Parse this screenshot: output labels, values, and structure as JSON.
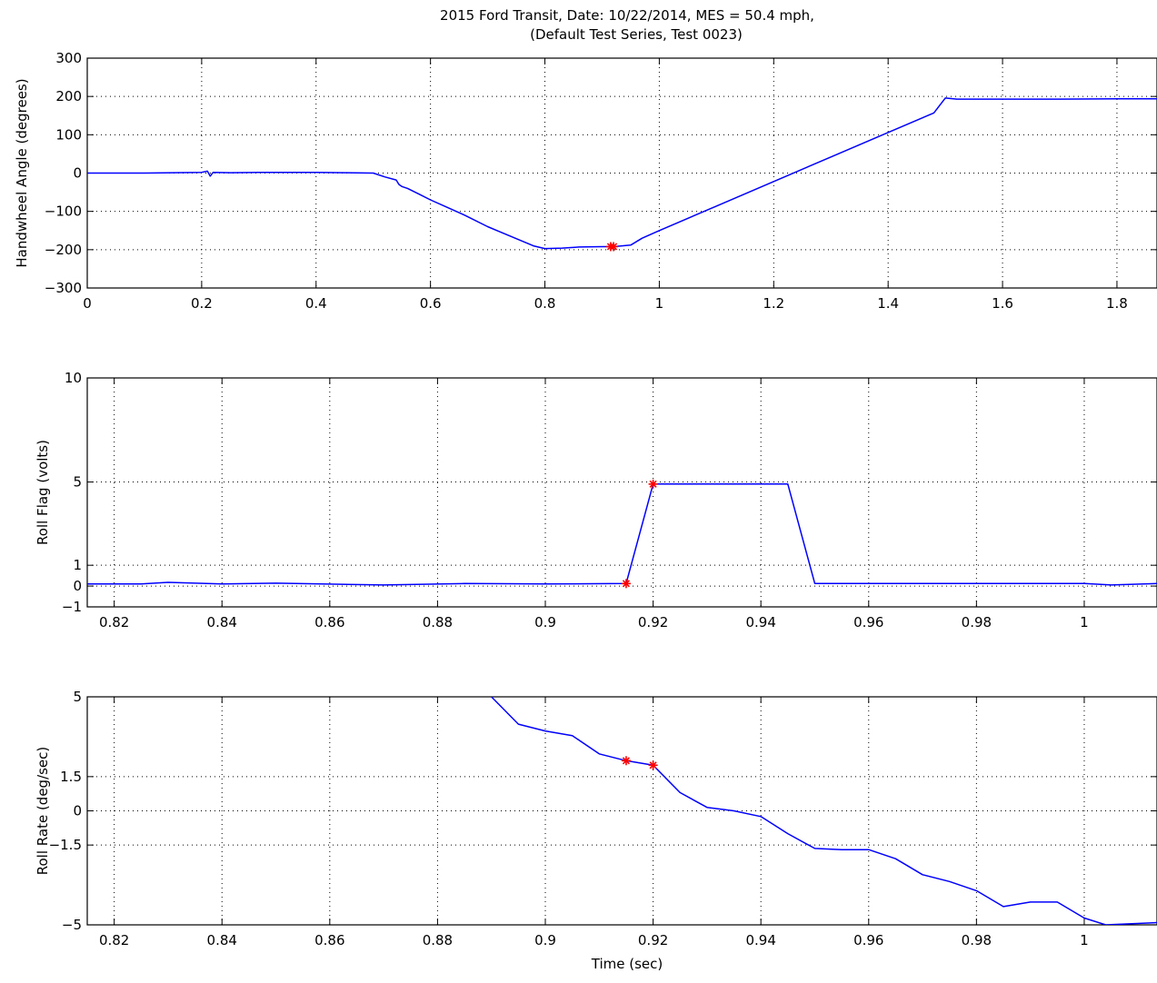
{
  "figure_title": {
    "line1": "2015 Ford Transit, Date: 10/22/2014, MES = 50.4 mph,",
    "line2": "(Default Test Series, Test 0023)"
  },
  "colors": {
    "series": "#0000ff",
    "marker": "#ff0000",
    "grid": "#000000"
  },
  "chart_data": [
    {
      "type": "line",
      "title": "",
      "xlabel": "",
      "ylabel": "Handwheel Angle (degrees)",
      "xlim": [
        0,
        1.87
      ],
      "ylim": [
        -300,
        300
      ],
      "grid": true,
      "xticks": [
        0,
        0.2,
        0.4,
        0.6,
        0.8,
        1,
        1.2,
        1.4,
        1.6,
        1.8
      ],
      "xtick_labels": [
        "0",
        "0.2",
        "0.4",
        "0.6",
        "0.8",
        "1",
        "1.2",
        "1.4",
        "1.6",
        "1.8"
      ],
      "yticks": [
        -300,
        -200,
        -100,
        0,
        100,
        200,
        300
      ],
      "ytick_labels": [
        "−300",
        "−200",
        "−100",
        "0",
        "100",
        "200",
        "300"
      ],
      "series": [
        {
          "x": [
            0,
            0.05,
            0.1,
            0.15,
            0.2,
            0.21,
            0.215,
            0.22,
            0.25,
            0.3,
            0.35,
            0.4,
            0.45,
            0.5,
            0.52,
            0.54,
            0.545,
            0.55,
            0.56,
            0.58,
            0.6,
            0.63,
            0.66,
            0.7,
            0.74,
            0.78,
            0.8,
            0.83,
            0.86,
            0.9,
            0.915,
            0.92,
            0.95,
            0.97,
            1.0,
            1.05,
            1.1,
            1.2,
            1.3,
            1.4,
            1.48,
            1.5,
            1.52,
            1.6,
            1.7,
            1.8,
            1.87
          ],
          "y": [
            0,
            0,
            0,
            1,
            2,
            5,
            -8,
            2,
            1,
            2,
            2,
            2,
            1,
            0,
            -10,
            -18,
            -30,
            -35,
            -40,
            -55,
            -70,
            -90,
            -110,
            -140,
            -165,
            -190,
            -197,
            -196,
            -193,
            -192,
            -192,
            -192,
            -188,
            -170,
            -150,
            -118,
            -86,
            -22,
            42,
            106,
            157,
            196,
            193,
            193,
            193,
            194,
            194
          ]
        }
      ],
      "markers": {
        "x": [
          0.915,
          0.92
        ],
        "y": [
          -192,
          -192
        ]
      }
    },
    {
      "type": "line",
      "title": "",
      "xlabel": "",
      "ylabel": "Roll Flag (volts)",
      "xlim": [
        0.815,
        1.0135
      ],
      "ylim": [
        -1,
        10
      ],
      "grid": true,
      "xticks": [
        0.82,
        0.84,
        0.86,
        0.88,
        0.9,
        0.92,
        0.94,
        0.96,
        0.98,
        1
      ],
      "xtick_labels": [
        "0.82",
        "0.84",
        "0.86",
        "0.88",
        "0.9",
        "0.92",
        "0.94",
        "0.96",
        "0.98",
        "1"
      ],
      "yticks": [
        -1,
        0,
        1,
        5,
        10
      ],
      "ytick_labels": [
        "−1",
        "0",
        "1",
        "5",
        "10"
      ],
      "series": [
        {
          "x": [
            0.815,
            0.825,
            0.83,
            0.84,
            0.85,
            0.87,
            0.885,
            0.9,
            0.915,
            0.92,
            0.93,
            0.945,
            0.95,
            0.97,
            1.0,
            1.005,
            1.0135
          ],
          "y": [
            0.1,
            0.1,
            0.18,
            0.1,
            0.14,
            0.05,
            0.12,
            0.1,
            0.12,
            4.9,
            4.9,
            4.9,
            0.12,
            0.12,
            0.12,
            0.05,
            0.12
          ]
        }
      ],
      "markers": {
        "x": [
          0.915,
          0.92
        ],
        "y": [
          0.12,
          4.9
        ]
      }
    },
    {
      "type": "line",
      "title": "",
      "xlabel": "Time (sec)",
      "ylabel": "Roll Rate (deg/sec)",
      "xlim": [
        0.815,
        1.0135
      ],
      "ylim": [
        -5,
        5
      ],
      "grid": true,
      "xticks": [
        0.82,
        0.84,
        0.86,
        0.88,
        0.9,
        0.92,
        0.94,
        0.96,
        0.98,
        1
      ],
      "xtick_labels": [
        "0.82",
        "0.84",
        "0.86",
        "0.88",
        "0.9",
        "0.92",
        "0.94",
        "0.96",
        "0.98",
        "1"
      ],
      "yticks": [
        -5,
        -1.5,
        0,
        1.5,
        5
      ],
      "ytick_labels": [
        "−5",
        "−1.5",
        "0",
        "1.5",
        "5"
      ],
      "series": [
        {
          "x": [
            0.89,
            0.895,
            0.9,
            0.905,
            0.91,
            0.915,
            0.92,
            0.925,
            0.93,
            0.935,
            0.94,
            0.945,
            0.95,
            0.955,
            0.96,
            0.965,
            0.97,
            0.975,
            0.98,
            0.985,
            0.99,
            0.995,
            1.0,
            1.004,
            1.0135
          ],
          "y": [
            5,
            3.8,
            3.5,
            3.3,
            2.5,
            2.2,
            2.0,
            0.8,
            0.15,
            0.0,
            -0.25,
            -1.0,
            -1.65,
            -1.7,
            -1.7,
            -2.1,
            -2.8,
            -3.1,
            -3.5,
            -4.2,
            -4.0,
            -4.0,
            -4.7,
            -5.0,
            -4.9
          ]
        }
      ],
      "markers": {
        "x": [
          0.915,
          0.92
        ],
        "y": [
          2.2,
          2.0
        ]
      }
    }
  ]
}
